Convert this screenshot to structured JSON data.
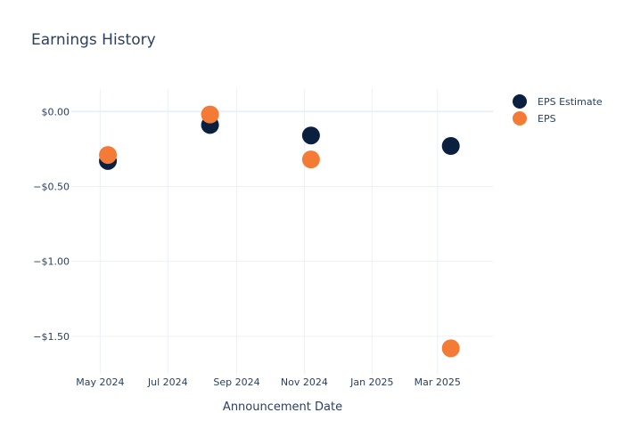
{
  "chart_data": {
    "type": "scatter",
    "title": "Earnings History",
    "xlabel": "Announcement Date",
    "ylabel": "",
    "x_ticks": [
      {
        "date": "2024-05-01",
        "label": "May 2024"
      },
      {
        "date": "2024-07-01",
        "label": "Jul 2024"
      },
      {
        "date": "2024-09-01",
        "label": "Sep 2024"
      },
      {
        "date": "2024-11-01",
        "label": "Nov 2024"
      },
      {
        "date": "2025-01-01",
        "label": "Jan 2025"
      },
      {
        "date": "2025-03-01",
        "label": "Mar 2025"
      }
    ],
    "x_range": [
      "2024-04-05",
      "2025-04-20"
    ],
    "y_ticks": [
      {
        "value": 0,
        "label": "$0.00"
      },
      {
        "value": -0.5,
        "label": "−$0.50"
      },
      {
        "value": -1.0,
        "label": "−$1.00"
      },
      {
        "value": -1.5,
        "label": "−$1.50"
      }
    ],
    "ylim": [
      -1.75,
      0.15
    ],
    "legend_position": "top-right",
    "series": [
      {
        "name": "EPS Estimate",
        "color": "#0b1f3f",
        "points": [
          {
            "x": "2024-05-08",
            "y": -0.33
          },
          {
            "x": "2024-08-08",
            "y": -0.09
          },
          {
            "x": "2024-11-07",
            "y": -0.16
          },
          {
            "x": "2025-03-13",
            "y": -0.23
          }
        ]
      },
      {
        "name": "EPS",
        "color": "#f47b35",
        "points": [
          {
            "x": "2024-05-08",
            "y": -0.29
          },
          {
            "x": "2024-08-08",
            "y": -0.02
          },
          {
            "x": "2024-11-07",
            "y": -0.32
          },
          {
            "x": "2025-03-13",
            "y": -1.58
          }
        ]
      }
    ]
  }
}
